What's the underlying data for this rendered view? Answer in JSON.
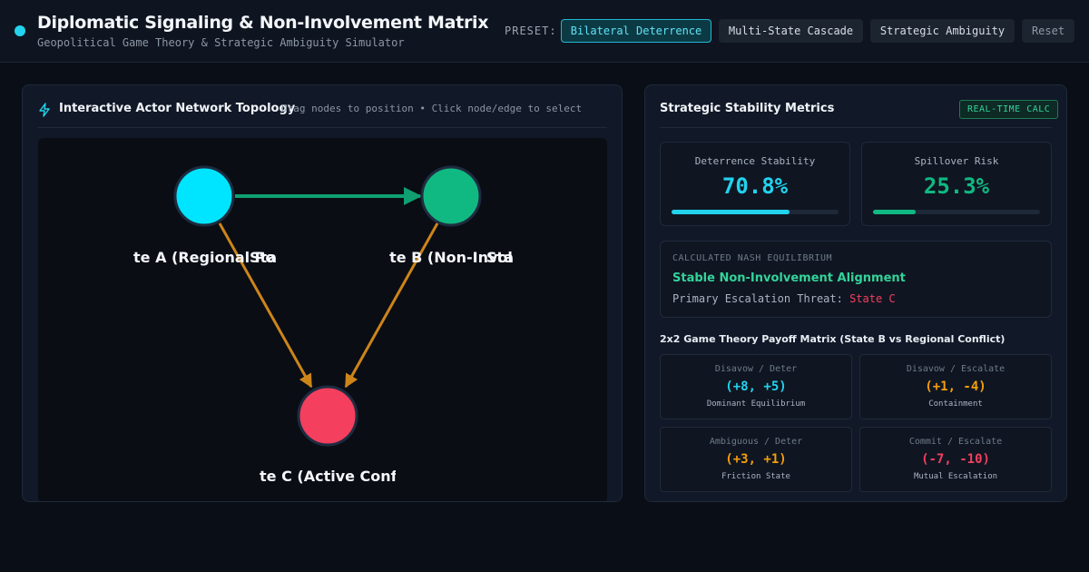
{
  "header": {
    "title": "Diplomatic Signaling & Non-Involvement Matrix",
    "subtitle": "Geopolitical Game Theory & Strategic Ambiguity Simulator",
    "preset_label": "PRESET:",
    "presets": [
      {
        "label": "Bilateral Deterrence",
        "active": true
      },
      {
        "label": "Multi-State Cascade",
        "active": false
      },
      {
        "label": "Strategic Ambiguity",
        "active": false
      }
    ],
    "reset_label": "Reset"
  },
  "network": {
    "title": "Interactive Actor Network Topology",
    "hint": "Drag nodes to position • Click node/edge to select",
    "nodes": [
      {
        "id": "A",
        "label": "te A (Regional Pow",
        "label_overlap": "Sta",
        "color": "#00e5ff"
      },
      {
        "id": "B",
        "label": "te B (Non-Invol",
        "label_overlap": "Sta",
        "color": "#10b981"
      },
      {
        "id": "C",
        "label": "te C (Active Confl",
        "color": "#f43f5e"
      }
    ],
    "edges": [
      {
        "from": "A",
        "to": "B",
        "color": "#10b981"
      },
      {
        "from": "A",
        "to": "C",
        "color": "#e3931a"
      },
      {
        "from": "B",
        "to": "C",
        "color": "#e3931a"
      }
    ]
  },
  "metrics": {
    "title": "Strategic Stability Metrics",
    "badge": "REAL-TIME CALC",
    "deterrence": {
      "label": "Deterrence Stability",
      "value": "70.8%",
      "fraction": 0.708,
      "color": "#22d3ee"
    },
    "spillover": {
      "label": "Spillover Risk",
      "value": "25.3%",
      "fraction": 0.253,
      "color": "#10b981"
    },
    "nash": {
      "label": "CALCULATED NASH EQUILIBRIUM",
      "value": "Stable Non-Involvement Alignment",
      "threat_label": "Primary Escalation Threat:",
      "threat_value": "State C"
    },
    "matrix": {
      "title": "2x2 Game Theory Payoff Matrix (State B vs Regional Conflict)",
      "cells": [
        {
          "header": "Disavow / Deter",
          "value": "(+8, +5)",
          "sub": "Dominant Equilibrium",
          "color": "#22d3ee"
        },
        {
          "header": "Disavow / Escalate",
          "value": "(+1, -4)",
          "sub": "Containment",
          "color": "#f59e0b"
        },
        {
          "header": "Ambiguous / Deter",
          "value": "(+3, +1)",
          "sub": "Friction State",
          "color": "#f59e0b"
        },
        {
          "header": "Commit / Escalate",
          "value": "(-7, -10)",
          "sub": "Mutual Escalation",
          "color": "#f43f5e"
        }
      ]
    }
  }
}
